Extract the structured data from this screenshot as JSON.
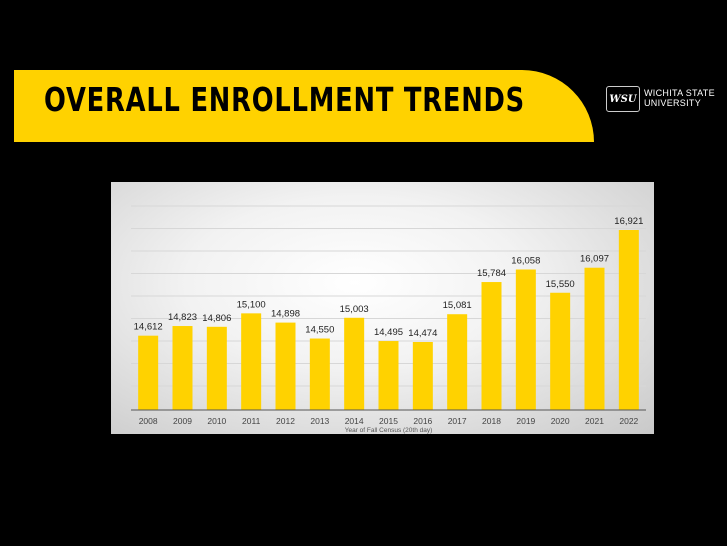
{
  "header": {
    "title": "OVERALL ENROLLMENT TRENDS",
    "logo_mark": "WSU",
    "logo_line1": "WICHITA STATE",
    "logo_line2": "UNIVERSITY",
    "banner_color": "#FFD200"
  },
  "chart_data": {
    "type": "bar",
    "categories": [
      "2008",
      "2009",
      "2010",
      "2011",
      "2012",
      "2013",
      "2014",
      "2015",
      "2016",
      "2017",
      "2018",
      "2019",
      "2020",
      "2021",
      "2022"
    ],
    "values": [
      14612,
      14823,
      14806,
      15100,
      14898,
      14550,
      15003,
      14495,
      14474,
      15081,
      15784,
      16058,
      15550,
      16097,
      16921
    ],
    "data_labels": [
      "14,612",
      "14,823",
      "14,806",
      "15,100",
      "14,898",
      "14,550",
      "15,003",
      "14,495",
      "14,474",
      "15,081",
      "15,784",
      "16,058",
      "15,550",
      "16,097",
      "16,921"
    ],
    "title": "",
    "xlabel": "Year of Fall Census (20th day)",
    "ylabel": "",
    "grid": true,
    "bar_color": "#FFD200"
  }
}
